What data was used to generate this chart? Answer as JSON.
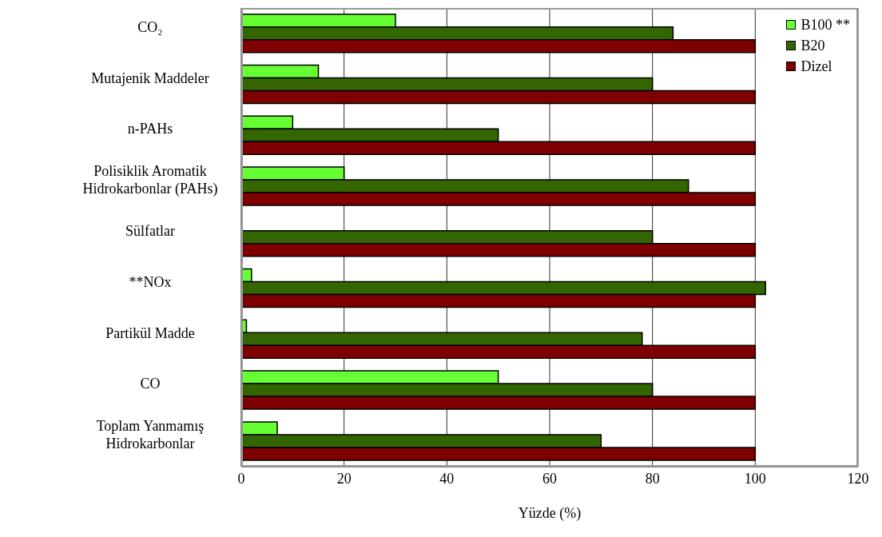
{
  "chart_data": {
    "type": "bar",
    "orientation": "horizontal",
    "xlabel": "Yüzde (%)",
    "categories": [
      "CO₂",
      "Mutajenik Maddeler",
      "n-PAHs",
      "Polisiklik Aromatik Hidrokarbonlar (PAHs)",
      "Sülfatlar",
      "**NOx",
      "Partikül Madde",
      "CO",
      "Toplam Yanmamış Hidrokarbonlar"
    ],
    "series": [
      {
        "name": "B100 **",
        "color": "#66ff33",
        "values": [
          30,
          15,
          10,
          20,
          null,
          2,
          1,
          50,
          7
        ]
      },
      {
        "name": "B20",
        "color": "#336600",
        "values": [
          84,
          80,
          50,
          87,
          80,
          102,
          78,
          80,
          70
        ]
      },
      {
        "name": "Dizel",
        "color": "#7f0000",
        "values": [
          100,
          100,
          100,
          100,
          100,
          100,
          100,
          100,
          100
        ]
      }
    ],
    "xlim": [
      0,
      120
    ],
    "xticks": [
      0,
      20,
      40,
      60,
      80,
      100,
      120
    ],
    "grid": "x",
    "legend": "top right"
  }
}
